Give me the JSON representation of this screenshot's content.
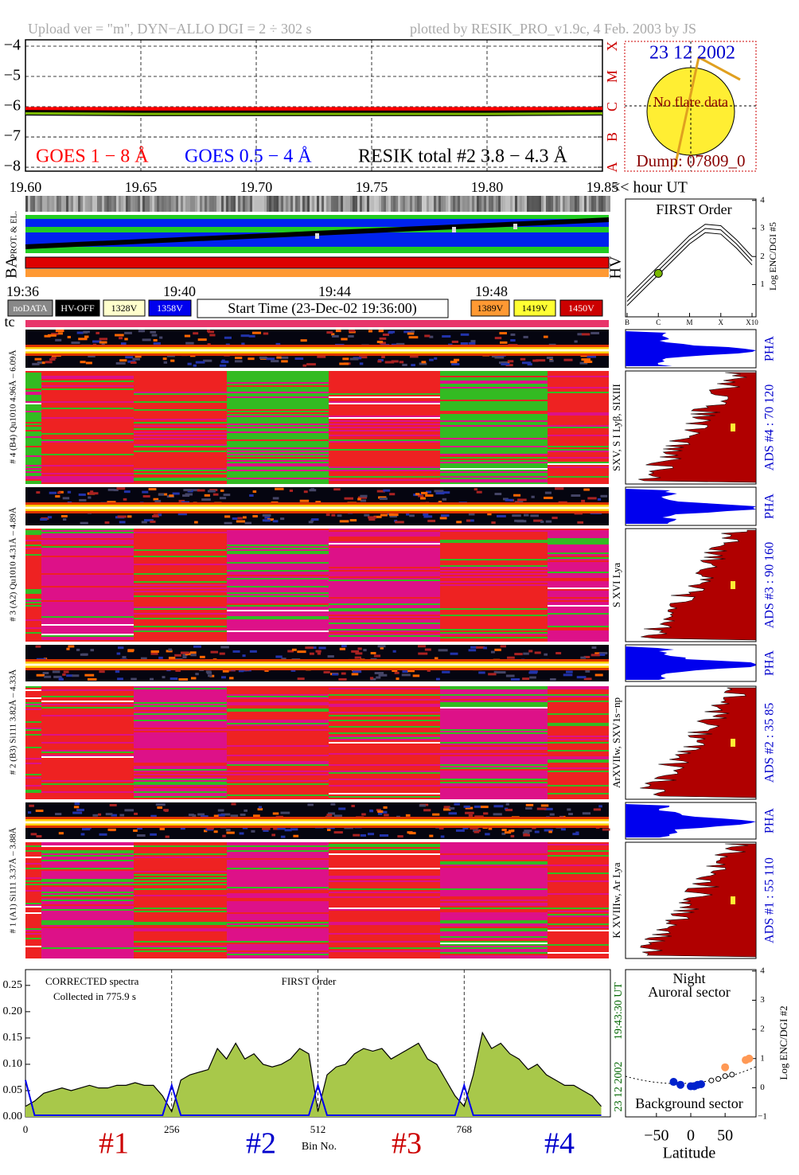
{
  "header": {
    "left": "Upload ver = \"m\", DYN−ALLO DGI =  2 ÷ 302 s",
    "right": "plotted by RESIK_PRO_v1.9c, 4 Feb. 2003 by JS"
  },
  "sun": {
    "date": "23 12 2002",
    "status": "No flare data",
    "dump": "Dump: 07809_0"
  },
  "status": {
    "prot_label": "PROT. & EL.",
    "ba_label": "BA",
    "hv_label": "HV",
    "times": [
      "19:36",
      "19:40",
      "19:44",
      "19:48"
    ],
    "badges": [
      {
        "text": "noDATA",
        "color": "#888888"
      },
      {
        "text": "HV-OFF",
        "color": "#000000"
      },
      {
        "text": "1328V",
        "color": "#ffffcc"
      },
      {
        "text": "1358V",
        "color": "#0000ee"
      },
      {
        "text": "1389V",
        "color": "#ff9933"
      },
      {
        "text": "1419V",
        "color": "#ffff33"
      },
      {
        "text": "1450V",
        "color": "#cc0000"
      }
    ],
    "start_time": "Start Time (23-Dec-02 19:36:00)",
    "tc_label": "tc"
  },
  "channels": [
    {
      "label": "# 4 (B4) Qu1010 4.96Å – 6.09Å",
      "pha": "PHA",
      "lines": "SXV, S I Lyβ, SIXIII",
      "ads": "ADS #4 :   70 120"
    },
    {
      "label": "# 3 (A2) Qu1010 4.31Å – 4.89Å",
      "pha": "PHA",
      "lines": "S XVI Lya",
      "ads": "ADS #3 :   90 160"
    },
    {
      "label": "# 2 (B3) Si111 3.82Å – 4.33Å",
      "pha": "PHA",
      "lines": "ArXVIIw, SXV1s−np",
      "ads": "ADS #2 :   35 85"
    },
    {
      "label": "# 1 (A1) Si111 3.37Å – 3.88Å",
      "pha": "PHA",
      "lines": "K XVIIIw, Ar Lya",
      "ads": "ADS #1 :   55 110"
    }
  ],
  "chart_data": [
    {
      "type": "line",
      "x": [
        19.6,
        19.65,
        19.7,
        19.75,
        19.8,
        19.85
      ],
      "xlim": [
        19.6,
        19.85
      ],
      "xticks": [
        {
          "value": 19.6,
          "label": "19.60"
        },
        {
          "value": 19.65,
          "label": "19.65"
        },
        {
          "value": 19.7,
          "label": "19.70"
        },
        {
          "value": 19.75,
          "label": "19.75"
        },
        {
          "value": 19.8,
          "label": "19.80"
        },
        {
          "value": 19.85,
          "label": "19.85"
        }
      ],
      "xlabel": "<< hour UT",
      "ylim": [
        -8.13,
        -3.79
      ],
      "yticks": [
        {
          "value": -4,
          "label": "−4"
        },
        {
          "value": -5,
          "label": "−5"
        },
        {
          "value": -6,
          "label": "−6"
        },
        {
          "value": -7,
          "label": "−7"
        },
        {
          "value": -8,
          "label": "−8"
        }
      ],
      "y2lim": [
        -8.13,
        -3.79
      ],
      "y2ticks": [
        {
          "value": -8,
          "label": "A"
        },
        {
          "value": -7,
          "label": "B"
        },
        {
          "value": -6,
          "label": "C"
        },
        {
          "value": -5,
          "label": "M"
        },
        {
          "value": -4,
          "label": "X"
        }
      ],
      "grid": true,
      "series": [
        {
          "name": "GOES 1 − 8 Å",
          "color": "#ff0000",
          "values": [
            -6.1,
            -6.1,
            -6.1,
            -6.1,
            -6.1,
            -6.1
          ]
        },
        {
          "name": "GOES 0.5 − 4 Å",
          "color": "#0000ff",
          "values": [
            null,
            null,
            null,
            null,
            null,
            null
          ]
        },
        {
          "name": "RESIK total #2  3.8 − 4.3 Å",
          "color": "#000000",
          "values": [
            -6.2,
            -6.22,
            -6.22,
            -6.22,
            -6.22,
            -6.2
          ]
        },
        {
          "color": "#7ab800",
          "values": [
            -6.22,
            -6.24,
            -6.24,
            -6.24,
            -6.24,
            -6.22
          ]
        }
      ]
    },
    {
      "type": "line",
      "title": "FIRST Order",
      "x": [
        0,
        0.5,
        1,
        1.5,
        2,
        2.5,
        3,
        3.5,
        4
      ],
      "xlim": [
        0,
        4
      ],
      "xticks": [
        {
          "value": 0,
          "label": "B"
        },
        {
          "value": 1,
          "label": "C"
        },
        {
          "value": 2,
          "label": "M"
        },
        {
          "value": 3,
          "label": "X"
        },
        {
          "value": 4,
          "label": "X10"
        }
      ],
      "ylim": [
        -0.15,
        4.05
      ],
      "yticks": [
        1,
        2,
        3,
        4
      ],
      "ylabel": "Log ENC/DGI #5",
      "series": [
        {
          "color": "#000000",
          "values": [
            0.55,
            1.1,
            1.65,
            2.2,
            2.75,
            3.15,
            3.1,
            2.6,
            2.0
          ]
        },
        {
          "color": "#000000",
          "values": [
            0.4,
            0.95,
            1.5,
            2.05,
            2.6,
            3.0,
            2.95,
            2.45,
            1.85
          ]
        },
        {
          "color": "#000000",
          "values": [
            0.25,
            0.8,
            1.35,
            1.9,
            2.45,
            2.85,
            2.8,
            2.3,
            1.7
          ]
        }
      ],
      "marker": {
        "x": 1.0,
        "y": 1.4,
        "color": "#7ab800"
      }
    },
    {
      "type": "line",
      "xlim": [
        0,
        1024
      ],
      "xticks": [
        0,
        256,
        512,
        768
      ],
      "xlabel": "Bin No.",
      "ylim": [
        0,
        0.28
      ],
      "yticks": [
        {
          "value": 0,
          "label": "0.00"
        },
        {
          "value": 0.05,
          "label": "0.05"
        },
        {
          "value": 0.1,
          "label": "0.10"
        },
        {
          "value": 0.15,
          "label": "0.15"
        },
        {
          "value": 0.2,
          "label": "0.20"
        },
        {
          "value": 0.25,
          "label": "0.25"
        }
      ],
      "annotations": [
        "CORRECTED spectra",
        "Collected in   775.9 s",
        "FIRST Order"
      ],
      "time": "19:43:30 UT",
      "date": "23 12 2002",
      "groups": [
        {
          "text": "#1",
          "color": "#cc0000"
        },
        {
          "text": "#2",
          "color": "#0000cc"
        },
        {
          "text": "#3",
          "color": "#cc0000"
        },
        {
          "text": "#4",
          "color": "#0000cc"
        }
      ],
      "x": [
        0,
        16,
        32,
        48,
        64,
        80,
        96,
        112,
        128,
        144,
        160,
        176,
        192,
        208,
        224,
        240,
        256,
        272,
        288,
        304,
        320,
        336,
        352,
        368,
        384,
        400,
        416,
        432,
        448,
        464,
        480,
        496,
        512,
        528,
        544,
        560,
        576,
        592,
        608,
        624,
        640,
        656,
        672,
        688,
        704,
        720,
        736,
        752,
        768,
        784,
        800,
        816,
        832,
        848,
        864,
        880,
        896,
        912,
        928,
        944,
        960,
        976,
        992,
        1008
      ],
      "series": [
        {
          "color": "#000000",
          "fill": "#a8c84a",
          "values": [
            0.02,
            0.03,
            0.045,
            0.05,
            0.055,
            0.05,
            0.055,
            0.06,
            0.055,
            0.055,
            0.06,
            0.06,
            0.065,
            0.06,
            0.06,
            0.04,
            0.01,
            0.07,
            0.08,
            0.085,
            0.09,
            0.13,
            0.11,
            0.14,
            0.11,
            0.12,
            0.1,
            0.095,
            0.1,
            0.11,
            0.13,
            0.12,
            0.01,
            0.08,
            0.095,
            0.1,
            0.12,
            0.13,
            0.125,
            0.13,
            0.11,
            0.12,
            0.13,
            0.14,
            0.11,
            0.1,
            0.07,
            0.04,
            0.02,
            0.08,
            0.16,
            0.13,
            0.14,
            0.12,
            0.11,
            0.09,
            0.1,
            0.08,
            0.07,
            0.06,
            0.06,
            0.05,
            0.04,
            0.02
          ]
        },
        {
          "color": "#0000ee",
          "values": [
            0.07,
            0.003,
            0.003,
            0.003,
            0.003,
            0.003,
            0.003,
            0.003,
            0.003,
            0.003,
            0.003,
            0.003,
            0.003,
            0.003,
            0.003,
            0.003,
            0.06,
            0.003,
            0.003,
            0.003,
            0.003,
            0.003,
            0.003,
            0.003,
            0.003,
            0.003,
            0.003,
            0.003,
            0.003,
            0.003,
            0.003,
            0.003,
            0.06,
            0.003,
            0.003,
            0.003,
            0.003,
            0.003,
            0.003,
            0.003,
            0.003,
            0.003,
            0.003,
            0.003,
            0.003,
            0.003,
            0.003,
            0.003,
            0.06,
            0.003,
            0.003,
            0.003,
            0.003,
            0.003,
            0.003,
            0.003,
            0.003,
            0.003,
            0.003,
            0.003,
            0.003,
            0.003,
            0.003,
            0.003
          ]
        }
      ]
    },
    {
      "type": "scatter",
      "xlim": [
        -95,
        95
      ],
      "xticks": [
        {
          "value": -50,
          "label": "−50"
        },
        0,
        50
      ],
      "xlabel": "Latitude",
      "ylim": [
        -1,
        4.05
      ],
      "yticks": [
        {
          "value": -1,
          "label": "−1"
        },
        0,
        1,
        2,
        3,
        4
      ],
      "ylabel": "Log ENC/DGI #2",
      "annotations": [
        "Night",
        "Auroral sector",
        "Background sector"
      ],
      "series": [
        {
          "color": "#0022cc",
          "x": [
            -25,
            -15,
            0,
            5,
            10,
            15
          ],
          "values": [
            0.2,
            0.1,
            0.05,
            0.05,
            0.1,
            0.12
          ]
        },
        {
          "color": "#ff9955",
          "x": [
            50,
            80,
            85
          ],
          "values": [
            0.7,
            0.95,
            1.0
          ]
        },
        {
          "color": "#ffffff",
          "x": [
            30,
            40,
            50,
            60
          ],
          "values": [
            0.25,
            0.3,
            0.4,
            0.45
          ]
        }
      ]
    }
  ]
}
